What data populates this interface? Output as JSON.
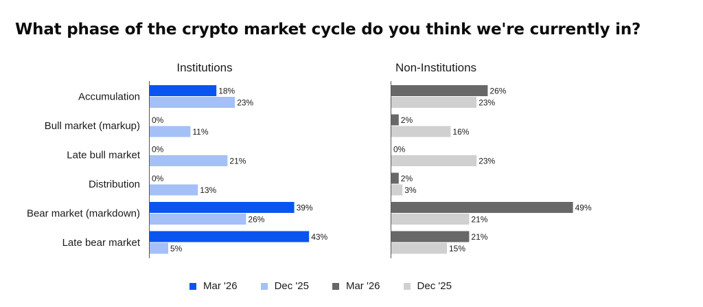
{
  "title": "What phase of the crypto market cycle do you think we're currently in?",
  "chart_data": {
    "type": "bar",
    "orientation": "horizontal",
    "title": "What phase of the crypto market cycle do you think we're currently in?",
    "categories": [
      "Accumulation",
      "Bull market (markup)",
      "Late bull market",
      "Distribution",
      "Bear market (markdown)",
      "Late bear market"
    ],
    "value_suffix": "%",
    "xlim": [
      0,
      55
    ],
    "grid": false,
    "legend_position": "bottom",
    "panels": [
      {
        "title": "Institutions",
        "series": [
          {
            "name": "Mar '26",
            "color": "#0a55f0",
            "values": [
              18,
              0,
              0,
              0,
              39,
              43
            ]
          },
          {
            "name": "Dec '25",
            "color": "#a4c0f7",
            "values": [
              23,
              11,
              21,
              13,
              26,
              5
            ]
          }
        ]
      },
      {
        "title": "Non-Institutions",
        "series": [
          {
            "name": "Mar '26",
            "color": "#686868",
            "values": [
              26,
              2,
              0,
              2,
              49,
              21
            ]
          },
          {
            "name": "Dec '25",
            "color": "#d0d0d0",
            "values": [
              23,
              16,
              23,
              3,
              21,
              15
            ]
          }
        ]
      }
    ]
  },
  "legend": [
    {
      "label": "Mar '26",
      "color": "#0a55f0"
    },
    {
      "label": "Dec '25",
      "color": "#a4c0f7"
    },
    {
      "label": "Mar '26",
      "color": "#686868"
    },
    {
      "label": "Dec '25",
      "color": "#d0d0d0"
    }
  ]
}
